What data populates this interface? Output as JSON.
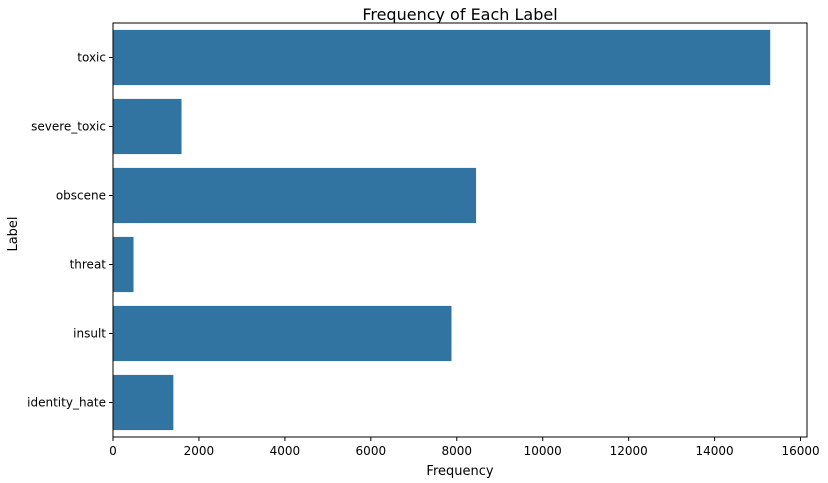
{
  "chart_data": {
    "type": "bar",
    "orientation": "horizontal",
    "title": "Frequency of Each Label",
    "xlabel": "Frequency",
    "ylabel": "Label",
    "categories": [
      "toxic",
      "severe_toxic",
      "obscene",
      "threat",
      "insult",
      "identity_hate"
    ],
    "values": [
      15294,
      1595,
      8449,
      478,
      7877,
      1405
    ],
    "xlim": [
      0,
      16150
    ],
    "xticks": [
      0,
      2000,
      4000,
      6000,
      8000,
      10000,
      12000,
      14000,
      16000
    ],
    "bar_color": "#3274a1",
    "grid": false,
    "legend": "none"
  }
}
